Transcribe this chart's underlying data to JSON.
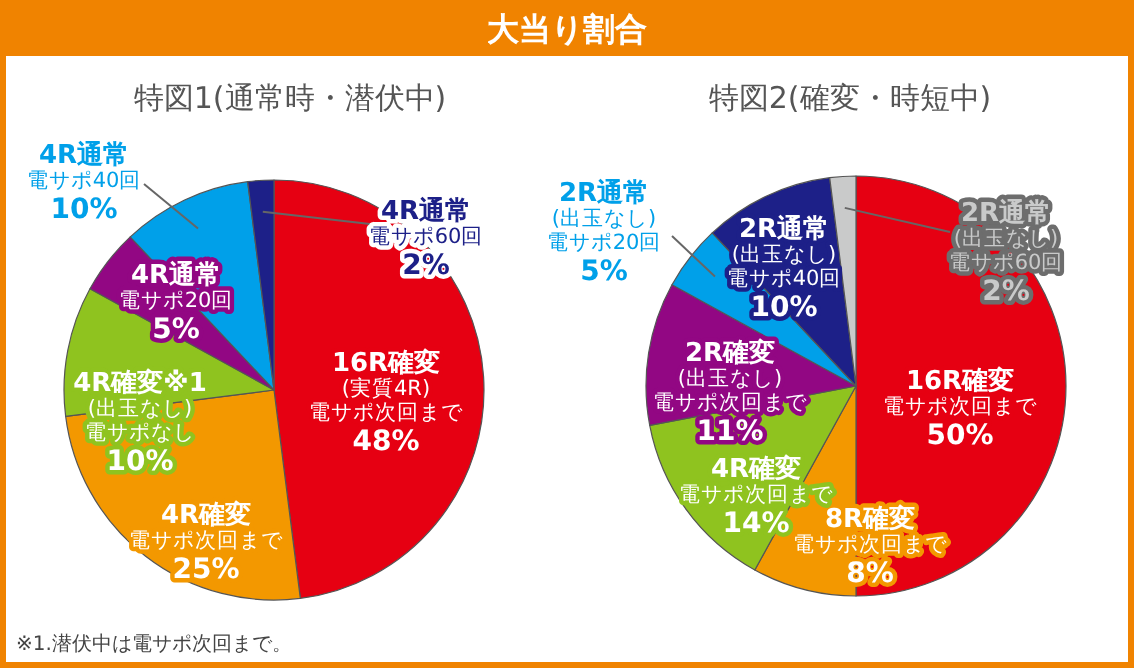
{
  "chart_data": [
    {
      "type": "pie",
      "title": "大当り割合",
      "subtitle": "特図1(通常時・潜伏中)",
      "categories": [
        "**16R確変**(実質4R)電サポ次回まで",
        "**4R確変**電サポ次回まで",
        "**4R確変※1**(出玉なし)電サポなし",
        "**4R通常**電サポ20回",
        "**4R通常**電サポ40回",
        "**4R通常**電サポ60回"
      ],
      "values": [
        48,
        25,
        10,
        5,
        10,
        2
      ],
      "value_labels": [
        "48%",
        "25%",
        "10%",
        "5%",
        "10%",
        "2%"
      ],
      "colors": [
        "#e60012",
        "#f39800",
        "#8fc31f",
        "#920783",
        "#00a0e9",
        "#1d2088"
      ],
      "annotations": [
        "※1.潜伏中は電サポ次回まで。"
      ]
    },
    {
      "type": "pie",
      "subtitle": "特図2(確変・時短中)",
      "categories": [
        "**16R確変**電サポ次回まで",
        "**8R確変**電サポ次回まで",
        "**4R確変**電サポ次回まで",
        "**2R確変**(出玉なし)電サポ次回まで",
        "**2R通常**(出玉なし)電サポ20回",
        "**2R通常**(出玉なし)電サポ40回",
        "**2R通常**(出玉なし)電サポ60回"
      ],
      "values": [
        50,
        8,
        14,
        11,
        5,
        10,
        2
      ],
      "value_labels": [
        "50%",
        "8%",
        "14%",
        "11%",
        "5%",
        "10%",
        "2%"
      ],
      "colors": [
        "#e60012",
        "#f39800",
        "#8fc31f",
        "#920783",
        "#00a0e9",
        "#1d2088",
        "#c9caca"
      ]
    }
  ]
}
